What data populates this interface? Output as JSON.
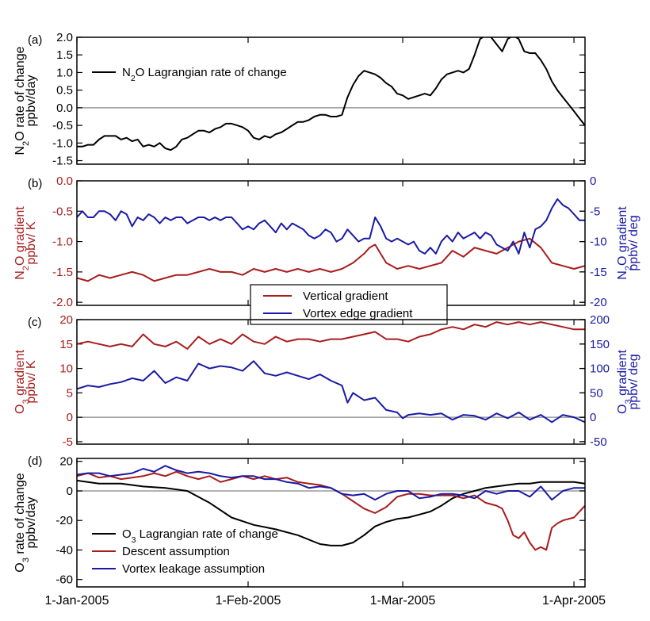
{
  "colors": {
    "black": "#000000",
    "red": "#a81c1c",
    "blue": "#1a1aa6",
    "zero": "#9a9a9a"
  },
  "x_axis": {
    "tick_labels": [
      "1-Jan-2005",
      "1-Feb-2005",
      "1-Mar-2005",
      "1-Apr-2005"
    ],
    "tick_days": [
      0,
      31,
      59,
      90
    ],
    "range_days": [
      0,
      92
    ]
  },
  "chart_data": [
    {
      "type": "line",
      "panel_label": "(a)",
      "ylabel_line1": "N2O rate of change",
      "ylabel_line2": "ppbv/day",
      "ylim": [
        -1.6,
        2.0
      ],
      "yticks": [
        2.0,
        1.5,
        1.0,
        0.5,
        0.0,
        -0.5,
        -1.0,
        -1.5
      ],
      "ytick_labels": [
        "2.0",
        "1.5",
        "1.0",
        "0.5",
        "0.0",
        "-0.5",
        "-1.0",
        "-1.5"
      ],
      "legend": [
        "N2O Lagrangian rate of change"
      ],
      "series": [
        {
          "name": "N2O Lagrangian rate of change",
          "color": "black",
          "x": [
            0,
            1,
            2,
            3,
            4,
            5,
            6,
            7,
            8,
            9,
            10,
            11,
            12,
            13,
            14,
            15,
            16,
            17,
            18,
            19,
            20,
            21,
            22,
            23,
            24,
            25,
            26,
            27,
            28,
            29,
            30,
            31,
            32,
            33,
            34,
            35,
            36,
            37,
            38,
            39,
            40,
            41,
            42,
            43,
            44,
            45,
            46,
            47,
            48,
            49,
            50,
            51,
            52,
            53,
            54,
            55,
            56,
            57,
            58,
            59,
            60,
            61,
            62,
            63,
            64,
            65,
            66,
            67,
            68,
            69,
            70,
            71,
            72,
            73,
            74,
            75,
            76,
            77,
            78,
            79,
            80,
            81,
            82,
            83,
            84,
            85,
            86,
            87,
            88,
            89,
            90,
            91,
            92
          ],
          "y": [
            -1.1,
            -1.1,
            -1.05,
            -1.05,
            -0.9,
            -0.8,
            -0.8,
            -0.8,
            -0.9,
            -0.85,
            -0.95,
            -0.9,
            -1.1,
            -1.05,
            -1.1,
            -1.0,
            -1.15,
            -1.2,
            -1.1,
            -0.9,
            -0.85,
            -0.75,
            -0.65,
            -0.65,
            -0.7,
            -0.6,
            -0.55,
            -0.45,
            -0.45,
            -0.5,
            -0.55,
            -0.65,
            -0.85,
            -0.9,
            -0.8,
            -0.85,
            -0.75,
            -0.7,
            -0.6,
            -0.5,
            -0.4,
            -0.4,
            -0.35,
            -0.25,
            -0.2,
            -0.2,
            -0.25,
            -0.25,
            -0.2,
            0.3,
            0.65,
            0.9,
            1.05,
            1.0,
            0.95,
            0.85,
            0.7,
            0.6,
            0.4,
            0.35,
            0.25,
            0.3,
            0.35,
            0.4,
            0.35,
            0.55,
            0.8,
            0.95,
            1.0,
            1.05,
            1.0,
            1.1,
            1.5,
            1.95,
            2.05,
            2.0,
            1.8,
            1.6,
            1.95,
            2.05,
            1.95,
            1.6,
            1.55,
            1.55,
            1.35,
            1.1,
            0.75,
            0.5,
            0.3,
            0.1,
            -0.1,
            -0.3,
            -0.5
          ]
        }
      ]
    },
    {
      "type": "line",
      "panel_label": "(b)",
      "ylabel_line1": "N2O gradient",
      "ylabel_line2": "ppbv/ K",
      "ylim": [
        -2.05,
        0.0
      ],
      "yticks": [
        0.0,
        -0.5,
        -1.0,
        -1.5,
        -2.0
      ],
      "ytick_labels": [
        "0.0",
        "-0.5",
        "-1.0",
        "-1.5",
        "-2.0"
      ],
      "ylabel_right_line1": "N2O gradient",
      "ylabel_right_line2": "ppbv/ deg",
      "ylim_right": [
        -20.5,
        0
      ],
      "yticks_right": [
        0,
        -5,
        -10,
        -15,
        -20
      ],
      "ytick_labels_right": [
        "0",
        "-5",
        "-10",
        "-15",
        "-20"
      ],
      "legend": [
        "Vertical gradient",
        "Vortex edge gradient"
      ],
      "legend_placement": "below",
      "series": [
        {
          "name": "Vertical gradient",
          "color": "red",
          "axis": "left",
          "x": [
            0,
            2,
            4,
            6,
            8,
            10,
            12,
            14,
            16,
            18,
            20,
            22,
            24,
            26,
            28,
            30,
            32,
            34,
            36,
            38,
            40,
            42,
            44,
            46,
            48,
            50,
            52,
            53,
            54,
            56,
            58,
            60,
            62,
            64,
            66,
            68,
            70,
            72,
            74,
            76,
            78,
            80,
            82,
            84,
            86,
            88,
            90,
            92
          ],
          "y": [
            -1.6,
            -1.65,
            -1.55,
            -1.6,
            -1.55,
            -1.5,
            -1.55,
            -1.65,
            -1.6,
            -1.55,
            -1.55,
            -1.5,
            -1.45,
            -1.5,
            -1.5,
            -1.55,
            -1.45,
            -1.5,
            -1.45,
            -1.5,
            -1.45,
            -1.5,
            -1.45,
            -1.5,
            -1.45,
            -1.35,
            -1.2,
            -1.1,
            -1.05,
            -1.35,
            -1.45,
            -1.4,
            -1.45,
            -1.4,
            -1.35,
            -1.15,
            -1.25,
            -1.1,
            -1.15,
            -1.2,
            -1.1,
            -1.0,
            -0.95,
            -1.1,
            -1.35,
            -1.4,
            -1.45,
            -1.4
          ]
        },
        {
          "name": "Vortex edge gradient",
          "color": "blue",
          "axis": "right",
          "x": [
            0,
            1,
            2,
            3,
            4,
            5,
            6,
            7,
            8,
            9,
            10,
            11,
            12,
            13,
            14,
            15,
            16,
            17,
            18,
            19,
            20,
            21,
            22,
            23,
            24,
            25,
            26,
            27,
            28,
            29,
            30,
            31,
            32,
            33,
            34,
            35,
            36,
            37,
            38,
            39,
            40,
            41,
            42,
            43,
            44,
            45,
            46,
            47,
            48,
            49,
            50,
            51,
            52,
            53,
            54,
            55,
            56,
            57,
            58,
            59,
            60,
            61,
            62,
            63,
            64,
            65,
            66,
            67,
            68,
            69,
            70,
            71,
            72,
            73,
            74,
            75,
            76,
            77,
            78,
            79,
            80,
            81,
            82,
            83,
            84,
            85,
            86,
            87,
            88,
            89,
            90,
            91,
            92
          ],
          "y": [
            -6.0,
            -5.0,
            -6.0,
            -6.0,
            -5.0,
            -5.0,
            -5.5,
            -6.5,
            -5.0,
            -5.5,
            -7.5,
            -6.0,
            -6.5,
            -5.5,
            -6.0,
            -7.0,
            -6.0,
            -6.5,
            -6.0,
            -6.0,
            -7.0,
            -6.5,
            -6.0,
            -6.0,
            -6.5,
            -6.0,
            -6.5,
            -6.0,
            -6.0,
            -7.0,
            -8.0,
            -7.5,
            -8.0,
            -7.0,
            -6.5,
            -7.5,
            -8.5,
            -7.0,
            -8.0,
            -7.0,
            -7.5,
            -8.0,
            -9.0,
            -9.5,
            -9.0,
            -8.0,
            -8.5,
            -10.0,
            -9.5,
            -8.0,
            -9.0,
            -10.0,
            -9.5,
            -9.5,
            -6.0,
            -7.5,
            -9.5,
            -10.0,
            -9.5,
            -10.0,
            -10.5,
            -10.0,
            -11.5,
            -12.0,
            -11.0,
            -12.0,
            -10.0,
            -9.0,
            -10.0,
            -8.5,
            -9.5,
            -9.0,
            -8.5,
            -9.5,
            -8.5,
            -9.0,
            -10.5,
            -11.0,
            -11.5,
            -10.0,
            -12.0,
            -8.5,
            -11.0,
            -8.0,
            -7.5,
            -6.5,
            -4.5,
            -3.0,
            -4.0,
            -4.5,
            -5.5,
            -6.5,
            -6.5
          ]
        }
      ]
    },
    {
      "type": "line",
      "panel_label": "(c)",
      "ylabel_line1": "O3 gradient",
      "ylabel_line2": "ppbv/ K",
      "ylim": [
        -5.5,
        20.0
      ],
      "yticks": [
        20,
        15,
        10,
        5,
        0,
        -5
      ],
      "ytick_labels": [
        "20",
        "15",
        "10",
        "5",
        "0",
        "-5"
      ],
      "ylabel_right_line1": "O3 gradient",
      "ylabel_right_line2": "ppbv/ deg",
      "ylim_right": [
        -55,
        200
      ],
      "yticks_right": [
        200,
        150,
        100,
        50,
        0,
        -50
      ],
      "ytick_labels_right": [
        "200",
        "150",
        "100",
        "50",
        "0",
        "-50"
      ],
      "series": [
        {
          "name": "Vertical gradient",
          "color": "red",
          "axis": "left",
          "x": [
            0,
            2,
            4,
            6,
            8,
            10,
            12,
            14,
            16,
            18,
            20,
            22,
            24,
            26,
            28,
            30,
            32,
            34,
            36,
            38,
            40,
            42,
            44,
            46,
            48,
            50,
            52,
            54,
            56,
            58,
            60,
            62,
            64,
            66,
            68,
            70,
            72,
            74,
            76,
            78,
            80,
            82,
            84,
            86,
            88,
            90,
            92
          ],
          "y": [
            15.0,
            15.5,
            15.0,
            14.5,
            15.0,
            14.5,
            17.0,
            15.0,
            14.5,
            15.5,
            14.0,
            16.5,
            15.0,
            16.0,
            15.0,
            17.0,
            15.5,
            15.0,
            16.5,
            15.5,
            16.0,
            16.0,
            15.5,
            16.0,
            16.0,
            16.5,
            17.0,
            17.5,
            16.0,
            16.0,
            15.5,
            16.5,
            17.0,
            18.0,
            18.5,
            18.0,
            19.0,
            18.5,
            19.5,
            19.0,
            19.5,
            19.0,
            19.5,
            19.0,
            18.5,
            18.0,
            18.0
          ]
        },
        {
          "name": "Vortex edge gradient",
          "color": "blue",
          "axis": "right",
          "x": [
            0,
            2,
            4,
            6,
            8,
            10,
            12,
            14,
            16,
            18,
            20,
            22,
            24,
            26,
            28,
            30,
            32,
            34,
            36,
            38,
            40,
            42,
            44,
            46,
            48,
            49,
            50,
            52,
            54,
            56,
            58,
            59,
            60,
            62,
            64,
            66,
            68,
            70,
            72,
            74,
            76,
            78,
            80,
            82,
            84,
            86,
            88,
            90,
            92
          ],
          "y": [
            58,
            65,
            62,
            68,
            72,
            80,
            75,
            95,
            70,
            82,
            75,
            110,
            100,
            105,
            102,
            95,
            115,
            90,
            85,
            92,
            85,
            78,
            88,
            75,
            65,
            30,
            50,
            35,
            40,
            15,
            10,
            -2,
            5,
            8,
            5,
            8,
            -5,
            5,
            3,
            -5,
            8,
            -2,
            10,
            -5,
            5,
            -10,
            5,
            0,
            -10
          ]
        }
      ]
    },
    {
      "type": "line",
      "panel_label": "(d)",
      "ylabel_line1": "O3 rate of change",
      "ylabel_line2": "ppbv/day",
      "ylim": [
        -65,
        22
      ],
      "yticks": [
        20,
        0,
        -20,
        -40,
        -60
      ],
      "ytick_labels": [
        "20",
        "0",
        "-20",
        "-40",
        "-60"
      ],
      "legend": [
        "O3 Lagrangian rate of change",
        "Descent assumption",
        "Vortex leakage assumption"
      ],
      "series": [
        {
          "name": "O3 Lagrangian rate of change",
          "color": "black",
          "x": [
            0,
            4,
            8,
            12,
            16,
            20,
            24,
            28,
            32,
            36,
            40,
            44,
            46,
            48,
            50,
            52,
            54,
            56,
            58,
            60,
            62,
            64,
            66,
            68,
            70,
            72,
            74,
            76,
            78,
            80,
            82,
            84,
            86,
            88,
            90,
            92
          ],
          "y": [
            7,
            5,
            5,
            3,
            2,
            0,
            -8,
            -18,
            -23,
            -26,
            -30,
            -36,
            -37,
            -37,
            -35,
            -30,
            -24,
            -21,
            -19,
            -18,
            -16,
            -14,
            -10,
            -5,
            -2,
            0,
            2,
            3,
            4,
            5,
            5,
            6,
            6,
            6,
            6,
            5
          ]
        },
        {
          "name": "Descent assumption",
          "color": "red",
          "x": [
            0,
            2,
            4,
            6,
            8,
            10,
            12,
            14,
            16,
            18,
            20,
            22,
            24,
            26,
            28,
            30,
            32,
            34,
            36,
            38,
            40,
            42,
            44,
            46,
            48,
            50,
            52,
            54,
            56,
            58,
            60,
            62,
            64,
            66,
            68,
            70,
            72,
            74,
            76,
            77,
            78,
            79,
            80,
            81,
            82,
            83,
            84,
            85,
            86,
            87,
            88,
            90,
            92
          ],
          "y": [
            10,
            12,
            9,
            10,
            8,
            9,
            10,
            12,
            10,
            13,
            10,
            8,
            10,
            6,
            8,
            10,
            8,
            10,
            8,
            9,
            6,
            5,
            4,
            2,
            -2,
            -7,
            -12,
            -15,
            -11,
            -4,
            -2,
            -2,
            -3,
            -3,
            -3,
            -5,
            -3,
            -8,
            -10,
            -12,
            -20,
            -30,
            -32,
            -28,
            -35,
            -40,
            -38,
            -40,
            -25,
            -22,
            -20,
            -18,
            -10
          ]
        },
        {
          "name": "Vortex leakage assumption",
          "color": "blue",
          "x": [
            0,
            2,
            4,
            6,
            8,
            10,
            12,
            14,
            16,
            18,
            20,
            22,
            24,
            26,
            28,
            30,
            32,
            34,
            36,
            38,
            40,
            42,
            44,
            46,
            48,
            50,
            52,
            54,
            56,
            58,
            60,
            62,
            64,
            66,
            68,
            70,
            72,
            74,
            76,
            78,
            80,
            82,
            84,
            86,
            88,
            90,
            92
          ],
          "y": [
            11,
            12,
            12,
            10,
            11,
            12,
            15,
            13,
            17,
            14,
            12,
            13,
            12,
            10,
            9,
            10,
            10,
            8,
            8,
            6,
            5,
            2,
            3,
            2,
            -2,
            -3,
            -2,
            -6,
            -2,
            0,
            0,
            -5,
            -4,
            -2,
            -2,
            -3,
            -5,
            0,
            -2,
            0,
            0,
            -4,
            3,
            -6,
            0,
            2,
            2
          ]
        }
      ]
    }
  ]
}
